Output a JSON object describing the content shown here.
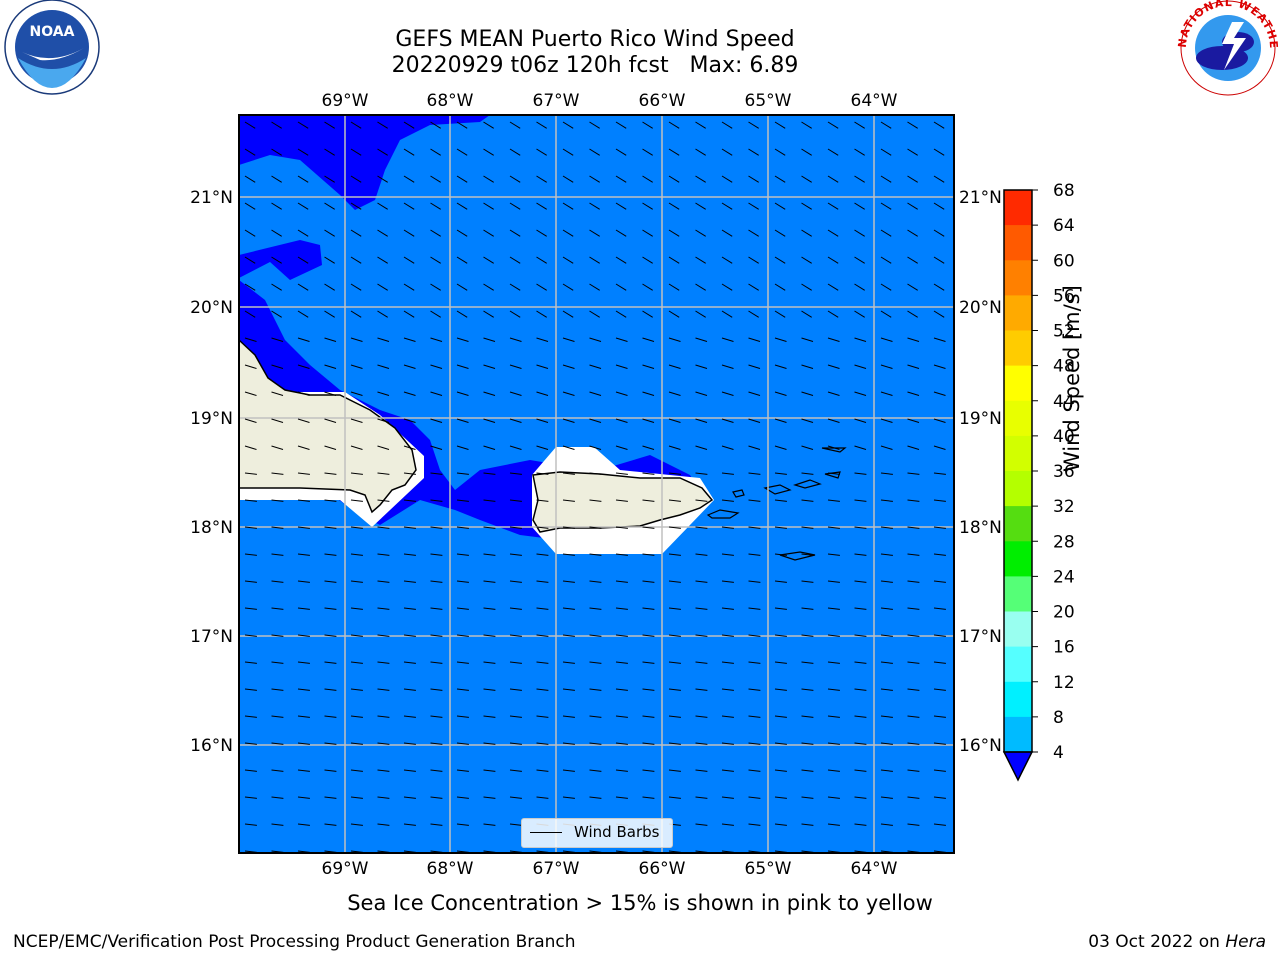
{
  "title": {
    "line1": "GEFS MEAN Puerto Rico Wind Speed",
    "line2": "20220929 t06z 120h fcst   Max: 6.89"
  },
  "map": {
    "lon_labels": [
      "69°W",
      "68°W",
      "67°W",
      "66°W",
      "65°W",
      "64°W"
    ],
    "lat_labels": [
      "21°N",
      "20°N",
      "19°N",
      "18°N",
      "17°N",
      "16°N"
    ],
    "ocean_color": "#0080ff",
    "low_wind_color": "#0000ff",
    "land_color": "#eeeedd",
    "grid_color": "#c0c0c0",
    "legend_label": "Wind Barbs"
  },
  "colorbar": {
    "title": "Wind Speed [m/s]",
    "ticks": [
      "68",
      "64",
      "60",
      "56",
      "52",
      "48",
      "44",
      "40",
      "36",
      "32",
      "28",
      "24",
      "20",
      "16",
      "12",
      "8",
      "4"
    ],
    "colors": [
      "#ff0000",
      "#ff2a00",
      "#ff5a00",
      "#ff8000",
      "#ffaa00",
      "#ffcc00",
      "#ffff00",
      "#e8ff00",
      "#d2ff00",
      "#b4ff00",
      "#55dd11",
      "#00ee00",
      "#55ff77",
      "#99fff0",
      "#55ffff",
      "#00f0ff",
      "#00bbff",
      "#0080ff"
    ],
    "extend_color": "#0000ff"
  },
  "caption": "Sea Ice Concentration > 15% is shown in pink to yellow",
  "footer": {
    "left": "NCEP/EMC/Verification Post Processing Product Generation Branch",
    "right_date": "03 Oct 2022 on ",
    "right_host": "Hera"
  },
  "logos": {
    "noaa_text": "NOAA",
    "nws_text": "NATIONAL WEATHER SERVICE"
  }
}
